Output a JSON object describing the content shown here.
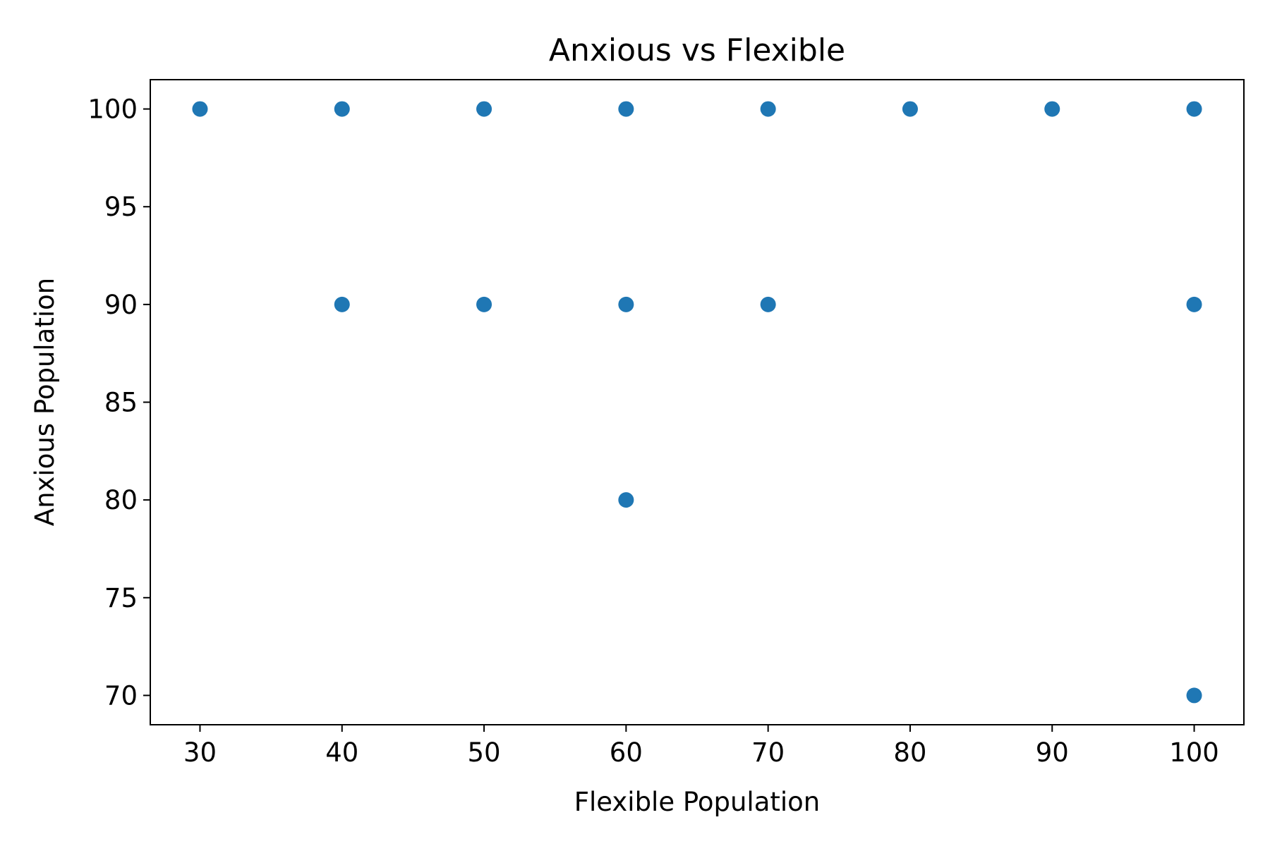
{
  "chart_data": {
    "type": "scatter",
    "title": "Anxious vs Flexible",
    "xlabel": "Flexible Population",
    "ylabel": "Anxious Population",
    "xlim": [
      26.5,
      103.5
    ],
    "ylim": [
      68.5,
      101.5
    ],
    "xticks": [
      30,
      40,
      50,
      60,
      70,
      80,
      90,
      100
    ],
    "yticks": [
      70,
      75,
      80,
      85,
      90,
      95,
      100
    ],
    "grid": false,
    "point_color": "#1f77b4",
    "points": [
      {
        "x": 30,
        "y": 100
      },
      {
        "x": 40,
        "y": 100
      },
      {
        "x": 50,
        "y": 100
      },
      {
        "x": 60,
        "y": 100
      },
      {
        "x": 70,
        "y": 100
      },
      {
        "x": 80,
        "y": 100
      },
      {
        "x": 90,
        "y": 100
      },
      {
        "x": 100,
        "y": 100
      },
      {
        "x": 40,
        "y": 90
      },
      {
        "x": 50,
        "y": 90
      },
      {
        "x": 60,
        "y": 90
      },
      {
        "x": 70,
        "y": 90
      },
      {
        "x": 100,
        "y": 90
      },
      {
        "x": 60,
        "y": 80
      },
      {
        "x": 100,
        "y": 70
      }
    ]
  }
}
